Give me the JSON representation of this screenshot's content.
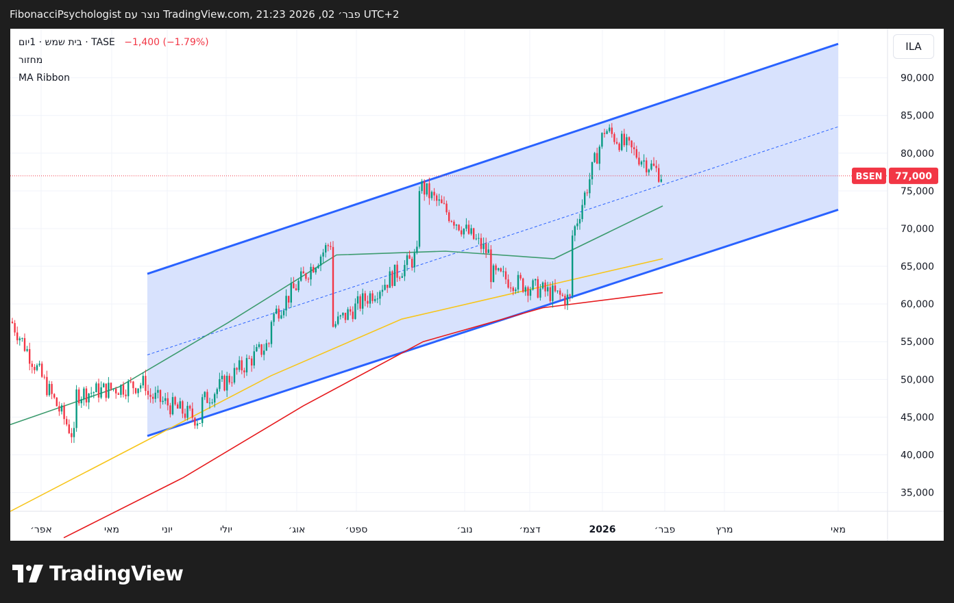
{
  "header": {
    "snapshot_text": "FibonacciPsychologist נוצר עם TradingView.com, 21:23 2026 ,02 פבר׳ UTC+2"
  },
  "legend": {
    "symbol": "בית שמש · 1יום · TASE",
    "change": "−1,400 (−1.79%)",
    "volume_label": "מחזור",
    "indicator": "MA Ribbon"
  },
  "currency": "ILA",
  "price_tag": {
    "symbol": "BSEN",
    "price": "77,000"
  },
  "branding": "TradingView",
  "colors": {
    "up": "#089981",
    "down": "#f23645",
    "channel_line": "#2962ff",
    "channel_fill": "#d6e0fd",
    "ma_short": "#3c9b6e",
    "ma_mid": "#f7c51a",
    "ma_long": "#e6191c"
  },
  "chart_data": {
    "type": "candlestick",
    "y_axis": {
      "ticks": [
        "90,000",
        "85,000",
        "80,000",
        "75,000",
        "70,000",
        "65,000",
        "60,000",
        "55,000",
        "50,000",
        "45,000",
        "40,000",
        "35,000"
      ],
      "ylim": [
        32500,
        97000
      ],
      "position": "right"
    },
    "x_axis": {
      "ticks": [
        "אפר׳",
        "מאי",
        "יוני",
        "יולי",
        "אוג׳",
        "ספט׳",
        "נוב׳",
        "דצמ׳",
        "2026",
        "פבר׳",
        "מרץ",
        "מאי"
      ]
    },
    "price_range_approx": {
      "segments": [
        {
          "period": "אפר׳",
          "from": 58000,
          "to": 42000
        },
        {
          "period": "מאי",
          "from": 48000,
          "to": 49500
        },
        {
          "period": "יוני",
          "from": 48000,
          "to": 44500
        },
        {
          "period": "יולי",
          "from": 47000,
          "to": 55000
        },
        {
          "period": "אוג׳",
          "from": 58000,
          "to": 68500
        },
        {
          "period": "ספט׳",
          "from": 57000,
          "to": 66500
        },
        {
          "period": "נוב׳",
          "from": 76000,
          "to": 66500
        },
        {
          "period": "דצמ׳",
          "from": 64000,
          "to": 60500
        },
        {
          "period": "2026",
          "from": 69000,
          "to": 84000
        },
        {
          "period": "פבר׳",
          "from": 83000,
          "to": 77000
        }
      ]
    },
    "last_price": 77000,
    "series": [
      {
        "name": "MA Ribbon",
        "values_approx": {
          "short": [
            44000,
            49000,
            57500,
            66500,
            67000,
            66000,
            73000
          ],
          "mid": [
            32500,
            41500,
            50500,
            58000,
            62000,
            66000
          ],
          "long": [
            29000,
            37000,
            46500,
            55000,
            59500,
            61500
          ]
        }
      }
    ],
    "channel": {
      "upper": [
        [
          64000,
          "יוני"
        ],
        [
          94500,
          "מאי"
        ]
      ],
      "lower": [
        [
          42500,
          "יוני"
        ],
        [
          72500,
          "מאי"
        ]
      ],
      "mid_dashed": true
    },
    "grid": true,
    "legend_position": "top-left"
  }
}
